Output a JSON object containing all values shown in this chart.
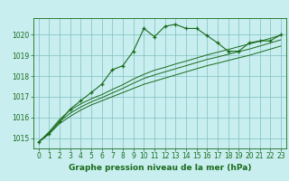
{
  "title": "Graphe pression niveau de la mer (hPa)",
  "background_color": "#c8eef0",
  "line_color": "#1a6b1a",
  "grid_color": "#7fbfbf",
  "hours": [
    0,
    1,
    2,
    3,
    4,
    5,
    6,
    7,
    8,
    9,
    10,
    11,
    12,
    13,
    14,
    15,
    16,
    17,
    18,
    19,
    20,
    21,
    22,
    23
  ],
  "pressure_main": [
    1014.8,
    1015.2,
    1015.8,
    1016.4,
    1016.8,
    1017.2,
    1017.6,
    1018.3,
    1018.5,
    1019.2,
    1020.3,
    1019.9,
    1020.4,
    1020.5,
    1020.3,
    1020.3,
    1019.95,
    1019.6,
    1019.2,
    1019.2,
    1019.6,
    1019.7,
    1019.7,
    1020.0
  ],
  "pressure_low": [
    1014.8,
    1015.2,
    1015.7,
    1016.05,
    1016.35,
    1016.6,
    1016.8,
    1017.0,
    1017.2,
    1017.4,
    1017.6,
    1017.75,
    1017.9,
    1018.05,
    1018.2,
    1018.35,
    1018.5,
    1018.62,
    1018.75,
    1018.88,
    1019.0,
    1019.15,
    1019.3,
    1019.45
  ],
  "pressure_mid": [
    1014.8,
    1015.25,
    1015.8,
    1016.2,
    1016.5,
    1016.75,
    1016.95,
    1017.18,
    1017.4,
    1017.65,
    1017.88,
    1018.05,
    1018.2,
    1018.35,
    1018.5,
    1018.65,
    1018.8,
    1018.92,
    1019.05,
    1019.18,
    1019.3,
    1019.45,
    1019.6,
    1019.75
  ],
  "pressure_high": [
    1014.8,
    1015.3,
    1015.9,
    1016.35,
    1016.65,
    1016.9,
    1017.1,
    1017.35,
    1017.58,
    1017.85,
    1018.08,
    1018.28,
    1018.42,
    1018.58,
    1018.72,
    1018.87,
    1019.02,
    1019.15,
    1019.28,
    1019.42,
    1019.55,
    1019.68,
    1019.82,
    1019.98
  ],
  "ylim": [
    1014.5,
    1020.8
  ],
  "yticks": [
    1015,
    1016,
    1017,
    1018,
    1019,
    1020
  ],
  "xticks": [
    0,
    1,
    2,
    3,
    4,
    5,
    6,
    7,
    8,
    9,
    10,
    11,
    12,
    13,
    14,
    15,
    16,
    17,
    18,
    19,
    20,
    21,
    22,
    23
  ],
  "xlabel_fontsize": 6.5,
  "tick_fontsize": 5.5
}
